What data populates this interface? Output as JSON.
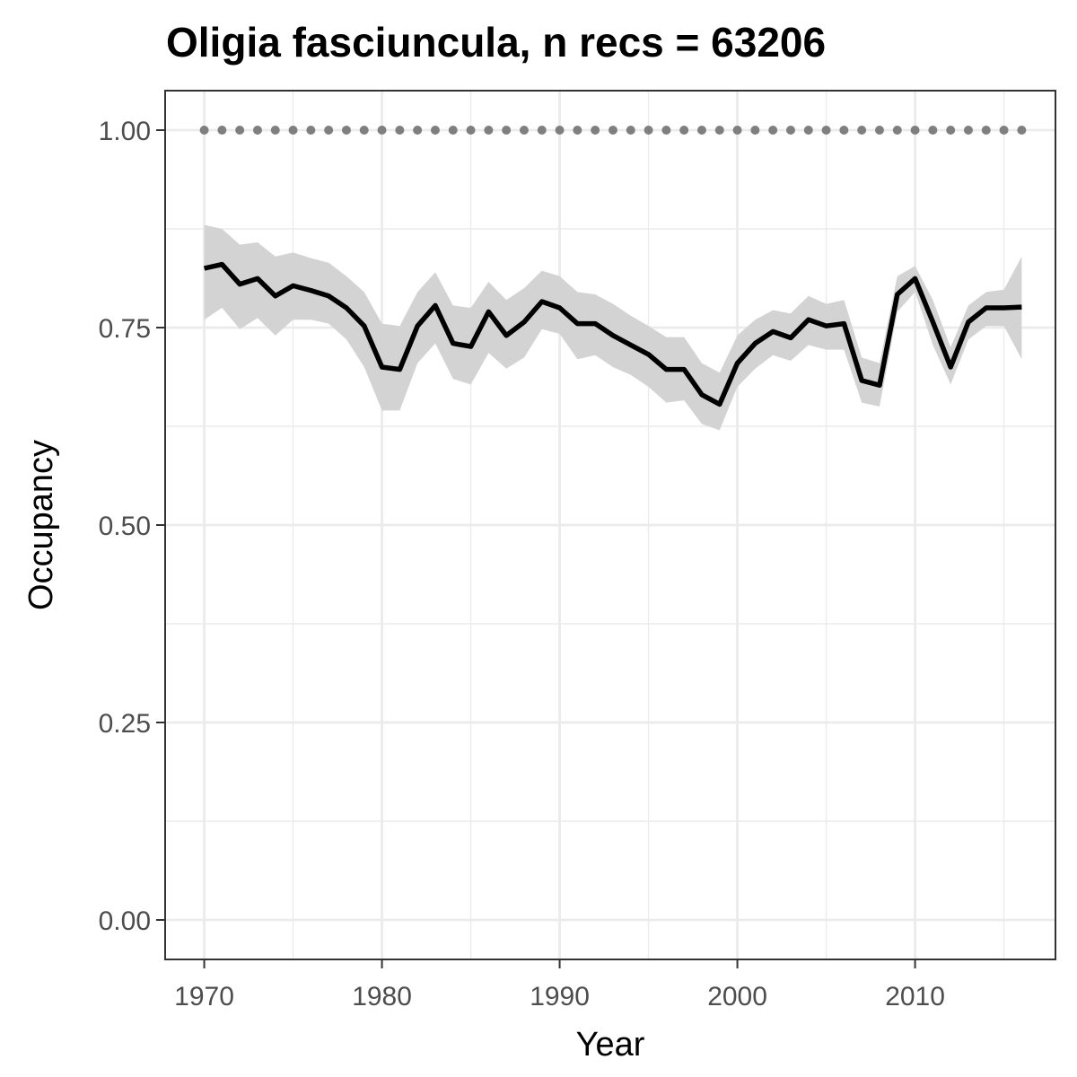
{
  "chart_data": {
    "type": "line",
    "title": "Oligia fasciuncula, n recs = 63206",
    "xlabel": "Year",
    "ylabel": "Occupancy",
    "xlim": [
      1967.8,
      2017.9
    ],
    "ylim": [
      -0.05,
      1.05
    ],
    "x_ticks": [
      1970,
      1980,
      1990,
      2000,
      2010
    ],
    "x_tick_labels": [
      "1970",
      "1980",
      "1990",
      "2000",
      "2010"
    ],
    "y_ticks": [
      0.0,
      0.25,
      0.5,
      0.75,
      1.0
    ],
    "y_tick_labels": [
      "0.00",
      "0.25",
      "0.50",
      "0.75",
      "1.00"
    ],
    "grid": true,
    "legend": "none",
    "colors": {
      "line": "#000000",
      "ribbon": "#d3d3d3",
      "reference_points": "#7f7f7f",
      "grid": "#ebebeb",
      "panel_border": "#333333"
    },
    "x": [
      1970,
      1971,
      1972,
      1973,
      1974,
      1975,
      1976,
      1977,
      1978,
      1979,
      1980,
      1981,
      1982,
      1983,
      1984,
      1985,
      1986,
      1987,
      1988,
      1989,
      1990,
      1991,
      1992,
      1993,
      1994,
      1995,
      1996,
      1997,
      1998,
      1999,
      2000,
      2001,
      2002,
      2003,
      2004,
      2005,
      2006,
      2007,
      2008,
      2009,
      2010,
      2011,
      2012,
      2013,
      2014,
      2015,
      2016
    ],
    "series": [
      {
        "values": [
          0.825,
          0.83,
          0.805,
          0.812,
          0.79,
          0.803,
          0.797,
          0.79,
          0.775,
          0.752,
          0.7,
          0.697,
          0.752,
          0.778,
          0.73,
          0.726,
          0.77,
          0.74,
          0.757,
          0.783,
          0.775,
          0.755,
          0.755,
          0.74,
          0.728,
          0.716,
          0.697,
          0.697,
          0.665,
          0.653,
          0.705,
          0.73,
          0.745,
          0.737,
          0.76,
          0.752,
          0.755,
          0.683,
          0.677,
          0.792,
          0.812,
          0.757,
          0.7,
          0.757,
          0.775,
          0.775,
          0.776
        ],
        "lower": [
          0.76,
          0.775,
          0.748,
          0.762,
          0.74,
          0.76,
          0.76,
          0.755,
          0.735,
          0.7,
          0.645,
          0.645,
          0.705,
          0.73,
          0.685,
          0.678,
          0.718,
          0.698,
          0.712,
          0.748,
          0.742,
          0.71,
          0.715,
          0.7,
          0.69,
          0.675,
          0.655,
          0.658,
          0.628,
          0.62,
          0.675,
          0.698,
          0.715,
          0.708,
          0.728,
          0.722,
          0.722,
          0.655,
          0.65,
          0.77,
          0.795,
          0.728,
          0.678,
          0.735,
          0.752,
          0.752,
          0.71
        ],
        "upper": [
          0.88,
          0.875,
          0.855,
          0.858,
          0.84,
          0.845,
          0.838,
          0.832,
          0.815,
          0.795,
          0.755,
          0.752,
          0.795,
          0.82,
          0.778,
          0.775,
          0.808,
          0.785,
          0.8,
          0.822,
          0.815,
          0.795,
          0.792,
          0.78,
          0.765,
          0.752,
          0.738,
          0.738,
          0.705,
          0.693,
          0.74,
          0.76,
          0.772,
          0.768,
          0.79,
          0.78,
          0.785,
          0.712,
          0.705,
          0.815,
          0.828,
          0.785,
          0.725,
          0.778,
          0.795,
          0.798,
          0.84
        ]
      }
    ],
    "reference_line": {
      "y": 1.0,
      "style": "dotted"
    }
  }
}
